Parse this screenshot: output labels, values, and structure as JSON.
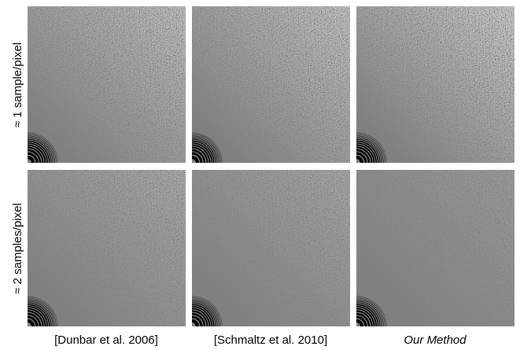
{
  "rows": [
    "≈ 1 sample/pixel",
    "≈ 2 samples/pixel"
  ],
  "columns": [
    "[Dunbar et al. 2006]",
    "[Schmaltz et al. 2010]",
    "Our Method"
  ]
}
